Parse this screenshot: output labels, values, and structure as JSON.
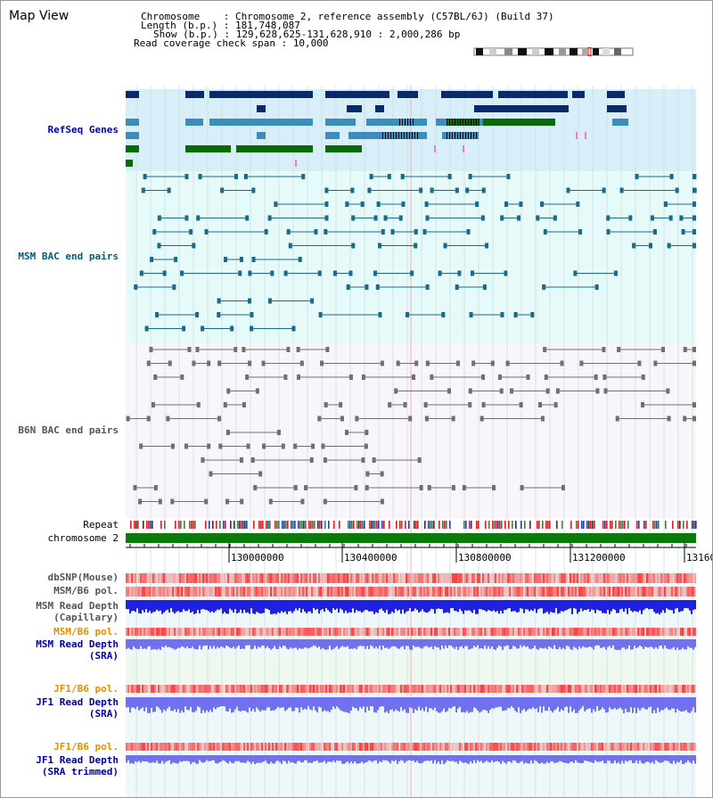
{
  "title": "Map View",
  "info": {
    "chromosome_label": "Chromosome    : ",
    "chromosome_value": "Chromosome 2, reference assembly (C57BL/6J) (Build 37)",
    "length_label": "Length (b.p.) : ",
    "length_value": "181,748,087",
    "show_label": "Show (b.p.) : ",
    "show_value": "129,628,625-131,628,910 : 2,000,286 bp",
    "coverage_label": "Read coverage check span : ",
    "coverage_value": "10,000"
  },
  "tracks": {
    "refseq": "RefSeq Genes",
    "msm_bac": "MSM BAC end pairs",
    "b6n_bac": "B6N BAC end pairs",
    "repeat": "Repeat",
    "chromosome": "chromosome 2",
    "dbsnp": "dbSNP(Mouse)",
    "msm_b6_pol": "MSM/B6 pol.",
    "msm_read_depth_cap_1": "MSM Read Depth",
    "msm_read_depth_cap_2": "(Capillary)",
    "msm_b6_pol_2": "MSM/B6 pol.",
    "msm_read_depth_sra_1": "MSM Read Depth",
    "msm_read_depth_sra_2": "(SRA)",
    "jf1_b6_pol": "JF1/B6 pol.",
    "jf1_read_depth_sra_1": "JF1 Read Depth",
    "jf1_read_depth_sra_2": "(SRA)",
    "jf1_b6_pol_2": "JF1/B6 pol.",
    "jf1_read_depth_trim_1": "JF1 Read Depth",
    "jf1_read_depth_trim_2": "(SRA trimmed)"
  },
  "axis": {
    "ticks": [
      "130000000",
      "130400000",
      "130800000",
      "131200000",
      "13160"
    ]
  },
  "colors": {
    "refseq_bg": "#d8effa",
    "msm_bg": "#e6fafa",
    "b6n_bg": "#f6f6fa",
    "dark_gene": "#0a2a6a",
    "mid_gene": "#3c8cbc",
    "green_gene": "#0a6a0a",
    "msm_bac": "#1a6a8a",
    "b6n_bac": "#707070",
    "chrom_green": "#0b7a0b",
    "depth_blue": "#2020e0",
    "depth_lightblue": "#7070f0"
  }
}
